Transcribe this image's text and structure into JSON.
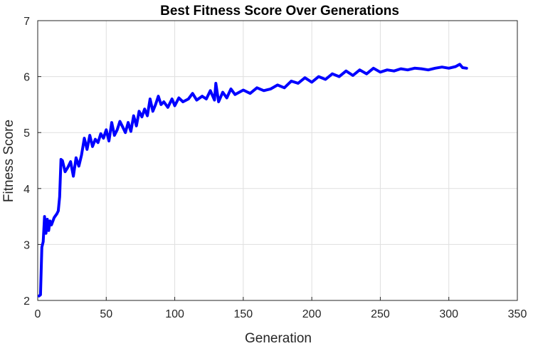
{
  "chart_data": {
    "type": "line",
    "title": "Best Fitness Score Over Generations",
    "xlabel": "Generation",
    "ylabel": "Fitness Score",
    "xlim": [
      0,
      350
    ],
    "ylim": [
      2,
      7
    ],
    "xticks": [
      "0",
      "50",
      "100",
      "150",
      "200",
      "250",
      "300",
      "350"
    ],
    "yticks": [
      "2",
      "3",
      "4",
      "5",
      "6",
      "7"
    ],
    "grid": true,
    "legend": "none",
    "line_color": "#0000ff",
    "series": [
      {
        "x": [
          1,
          2,
          3,
          4,
          5,
          6,
          7,
          8,
          9,
          10,
          12,
          14,
          15,
          16,
          17,
          18,
          20,
          22,
          24,
          26,
          28,
          30,
          32,
          34,
          36,
          38,
          40,
          42,
          44,
          46,
          48,
          50,
          52,
          54,
          56,
          58,
          60,
          62,
          64,
          66,
          68,
          70,
          72,
          74,
          76,
          78,
          80,
          82,
          84,
          86,
          88,
          90,
          92,
          95,
          98,
          100,
          103,
          106,
          110,
          113,
          116,
          120,
          123,
          126,
          129,
          130,
          132,
          135,
          138,
          141,
          144,
          147,
          150,
          155,
          160,
          165,
          170,
          175,
          180,
          185,
          190,
          195,
          200,
          205,
          210,
          215,
          220,
          225,
          230,
          235,
          240,
          245,
          250,
          255,
          260,
          265,
          270,
          275,
          280,
          285,
          290,
          295,
          300,
          305,
          308,
          310,
          313
        ],
        "y": [
          2.08,
          2.1,
          2.95,
          3.05,
          3.5,
          3.2,
          3.45,
          3.25,
          3.42,
          3.35,
          3.48,
          3.55,
          3.6,
          3.85,
          4.52,
          4.5,
          4.3,
          4.38,
          4.48,
          4.22,
          4.55,
          4.4,
          4.6,
          4.9,
          4.7,
          4.95,
          4.75,
          4.88,
          4.82,
          4.98,
          4.9,
          5.05,
          4.85,
          5.18,
          4.95,
          5.05,
          5.2,
          5.1,
          5.0,
          5.18,
          5.02,
          5.3,
          5.12,
          5.38,
          5.28,
          5.42,
          5.3,
          5.6,
          5.38,
          5.5,
          5.65,
          5.5,
          5.55,
          5.45,
          5.6,
          5.48,
          5.62,
          5.55,
          5.6,
          5.7,
          5.58,
          5.65,
          5.6,
          5.75,
          5.58,
          5.88,
          5.55,
          5.72,
          5.62,
          5.78,
          5.68,
          5.72,
          5.76,
          5.7,
          5.8,
          5.75,
          5.78,
          5.85,
          5.8,
          5.92,
          5.88,
          5.98,
          5.9,
          6.0,
          5.95,
          6.05,
          6.0,
          6.1,
          6.02,
          6.12,
          6.05,
          6.15,
          6.08,
          6.12,
          6.1,
          6.14,
          6.12,
          6.15,
          6.14,
          6.12,
          6.15,
          6.17,
          6.15,
          6.18,
          6.22,
          6.16,
          6.15
        ]
      }
    ]
  }
}
